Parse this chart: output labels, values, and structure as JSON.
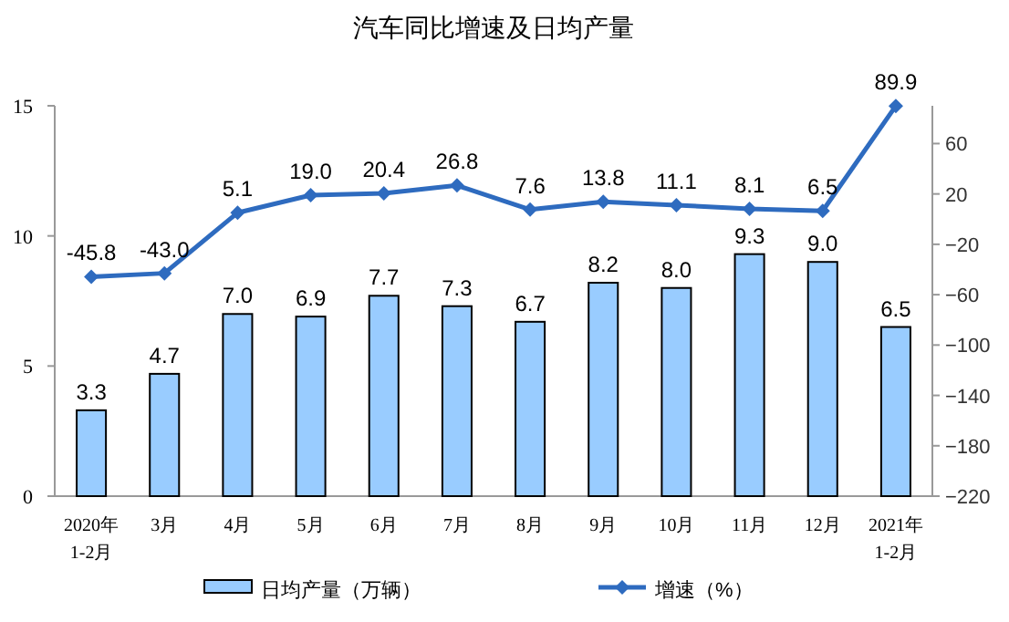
{
  "chart_data": {
    "type": "bar",
    "title": "汽车同比增速及日均产量",
    "categories": [
      "2020年\n1-2月",
      "3月",
      "4月",
      "5月",
      "6月",
      "7月",
      "8月",
      "9月",
      "10月",
      "11月",
      "12月",
      "2021年\n1-2月"
    ],
    "series": [
      {
        "name": "日均产量（万辆）",
        "color": "#99ccff",
        "values": [
          3.3,
          4.7,
          7.0,
          6.9,
          7.7,
          7.3,
          6.7,
          8.2,
          8.0,
          9.3,
          9.0,
          6.5
        ],
        "value_labels": [
          "3.3",
          "4.7",
          "7.0",
          "6.9",
          "7.7",
          "7.3",
          "6.7",
          "8.2",
          "8.0",
          "9.3",
          "9.0",
          "6.5"
        ]
      },
      {
        "name": "增速（%）",
        "type": "line",
        "axis": "y2",
        "color": "#2e6bbf",
        "values": [
          -45.8,
          -43.0,
          5.1,
          19.0,
          20.4,
          26.8,
          7.6,
          13.8,
          11.1,
          8.1,
          6.5,
          89.9
        ],
        "value_labels": [
          "-45.8",
          "-43.0",
          "5.1",
          "19.0",
          "20.4",
          "26.8",
          "7.6",
          "13.8",
          "11.1",
          "8.1",
          "6.5",
          "89.9"
        ]
      }
    ],
    "ylim": [
      0,
      15
    ],
    "yticks": [
      0,
      5,
      10,
      15
    ],
    "y2lim": [
      -220,
      90
    ],
    "y2ticks": [
      -220,
      -180,
      -140,
      -100,
      -60,
      -20,
      20,
      60
    ],
    "legend": "bottom",
    "marker": "diamond",
    "line_style": "solid",
    "grid": false
  }
}
